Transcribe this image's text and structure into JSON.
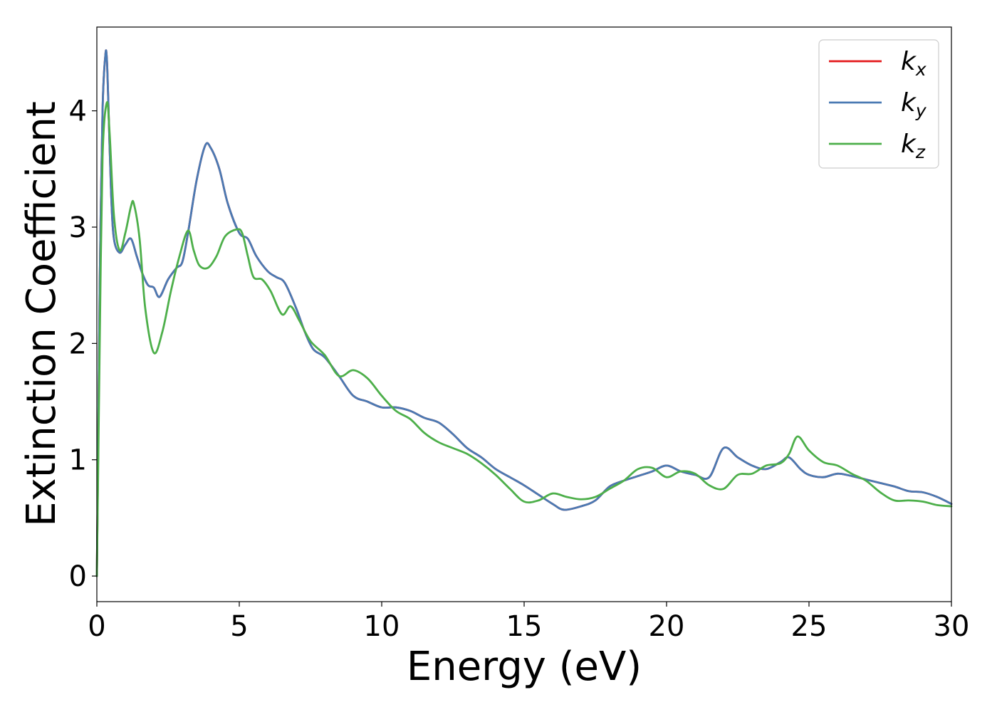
{
  "chart_data": {
    "type": "line",
    "title": "",
    "xlabel": "Energy (eV)",
    "ylabel": "Extinction Coefficient",
    "xlim": [
      0,
      30
    ],
    "ylim": [
      -0.22,
      4.72
    ],
    "xticks": [
      0,
      5,
      10,
      15,
      20,
      25,
      30
    ],
    "yticks": [
      0,
      1,
      2,
      3,
      4
    ],
    "grid": false,
    "legend_position": "top-right",
    "series": [
      {
        "name": "k_x",
        "label_base": "k",
        "label_sub": "x",
        "color": "#e41a1c",
        "x": [
          0,
          0.05,
          0.1,
          0.2,
          0.3,
          0.35,
          0.4,
          0.5,
          0.6,
          0.8,
          1.0,
          1.2,
          1.4,
          1.6,
          1.8,
          2.0,
          2.2,
          2.5,
          2.8,
          3.0,
          3.2,
          3.5,
          3.8,
          4.0,
          4.3,
          4.6,
          5.0,
          5.3,
          5.6,
          6.0,
          6.3,
          6.6,
          7.0,
          7.3,
          7.6,
          8.0,
          8.5,
          9.0,
          9.5,
          10.0,
          10.5,
          11.0,
          11.5,
          12.0,
          12.5,
          13.0,
          13.5,
          14.0,
          14.5,
          15.0,
          15.5,
          16.0,
          16.4,
          17.0,
          17.5,
          18.0,
          18.5,
          19.0,
          19.5,
          20.0,
          20.5,
          21.0,
          21.5,
          22.0,
          22.5,
          23.0,
          23.5,
          24.0,
          24.3,
          24.7,
          25.0,
          25.5,
          26.0,
          26.5,
          27.0,
          27.5,
          28.0,
          28.5,
          29.0,
          29.5,
          30.0
        ],
        "y": [
          0.0,
          1.2,
          2.5,
          4.0,
          4.48,
          4.45,
          4.1,
          3.3,
          2.9,
          2.78,
          2.85,
          2.9,
          2.75,
          2.6,
          2.5,
          2.48,
          2.4,
          2.55,
          2.65,
          2.7,
          2.95,
          3.4,
          3.7,
          3.68,
          3.5,
          3.2,
          2.95,
          2.9,
          2.75,
          2.62,
          2.57,
          2.52,
          2.3,
          2.1,
          1.95,
          1.88,
          1.72,
          1.55,
          1.5,
          1.45,
          1.45,
          1.42,
          1.36,
          1.32,
          1.22,
          1.1,
          1.02,
          0.92,
          0.85,
          0.78,
          0.7,
          0.62,
          0.57,
          0.6,
          0.65,
          0.77,
          0.82,
          0.86,
          0.9,
          0.95,
          0.9,
          0.87,
          0.85,
          1.1,
          1.02,
          0.95,
          0.92,
          0.98,
          1.02,
          0.92,
          0.87,
          0.85,
          0.88,
          0.86,
          0.83,
          0.8,
          0.77,
          0.73,
          0.72,
          0.68,
          0.62
        ]
      },
      {
        "name": "k_y",
        "label_base": "k",
        "label_sub": "y",
        "color": "#4a7ab3",
        "x": [
          0,
          0.05,
          0.1,
          0.2,
          0.3,
          0.35,
          0.4,
          0.5,
          0.6,
          0.8,
          1.0,
          1.2,
          1.4,
          1.6,
          1.8,
          2.0,
          2.2,
          2.5,
          2.8,
          3.0,
          3.2,
          3.5,
          3.8,
          4.0,
          4.3,
          4.6,
          5.0,
          5.3,
          5.6,
          6.0,
          6.3,
          6.6,
          7.0,
          7.3,
          7.6,
          8.0,
          8.5,
          9.0,
          9.5,
          10.0,
          10.5,
          11.0,
          11.5,
          12.0,
          12.5,
          13.0,
          13.5,
          14.0,
          14.5,
          15.0,
          15.5,
          16.0,
          16.4,
          17.0,
          17.5,
          18.0,
          18.5,
          19.0,
          19.5,
          20.0,
          20.5,
          21.0,
          21.5,
          22.0,
          22.5,
          23.0,
          23.5,
          24.0,
          24.3,
          24.7,
          25.0,
          25.5,
          26.0,
          26.5,
          27.0,
          27.5,
          28.0,
          28.5,
          29.0,
          29.5,
          30.0
        ],
        "y": [
          0.0,
          1.2,
          2.5,
          4.0,
          4.48,
          4.45,
          4.1,
          3.3,
          2.9,
          2.78,
          2.85,
          2.9,
          2.75,
          2.6,
          2.5,
          2.48,
          2.4,
          2.55,
          2.65,
          2.7,
          2.95,
          3.4,
          3.7,
          3.68,
          3.5,
          3.2,
          2.95,
          2.9,
          2.75,
          2.62,
          2.57,
          2.52,
          2.3,
          2.1,
          1.95,
          1.88,
          1.72,
          1.55,
          1.5,
          1.45,
          1.45,
          1.42,
          1.36,
          1.32,
          1.22,
          1.1,
          1.02,
          0.92,
          0.85,
          0.78,
          0.7,
          0.62,
          0.57,
          0.6,
          0.65,
          0.77,
          0.82,
          0.86,
          0.9,
          0.95,
          0.9,
          0.87,
          0.85,
          1.1,
          1.02,
          0.95,
          0.92,
          0.98,
          1.02,
          0.92,
          0.87,
          0.85,
          0.88,
          0.86,
          0.83,
          0.8,
          0.77,
          0.73,
          0.72,
          0.68,
          0.62
        ]
      },
      {
        "name": "k_z",
        "label_base": "k",
        "label_sub": "z",
        "color": "#4daf4a",
        "x": [
          0,
          0.05,
          0.1,
          0.2,
          0.35,
          0.45,
          0.6,
          0.8,
          1.0,
          1.2,
          1.3,
          1.5,
          1.7,
          2.0,
          2.3,
          2.6,
          2.9,
          3.2,
          3.4,
          3.6,
          3.9,
          4.2,
          4.5,
          4.9,
          5.1,
          5.3,
          5.5,
          5.8,
          6.1,
          6.5,
          6.8,
          7.1,
          7.5,
          8.0,
          8.5,
          9.0,
          9.5,
          10.0,
          10.5,
          11.0,
          11.5,
          12.0,
          12.5,
          13.0,
          13.5,
          14.0,
          14.5,
          15.0,
          15.5,
          16.0,
          16.5,
          17.0,
          17.5,
          18.0,
          18.5,
          19.0,
          19.5,
          20.0,
          20.5,
          21.0,
          21.5,
          22.0,
          22.5,
          23.0,
          23.5,
          24.0,
          24.3,
          24.6,
          25.0,
          25.5,
          26.0,
          26.5,
          27.0,
          27.5,
          28.0,
          28.5,
          29.0,
          29.5,
          30.0
        ],
        "y": [
          0.0,
          1.0,
          2.0,
          3.6,
          4.07,
          3.8,
          3.1,
          2.8,
          2.95,
          3.18,
          3.2,
          2.9,
          2.3,
          1.92,
          2.1,
          2.45,
          2.75,
          2.97,
          2.8,
          2.67,
          2.65,
          2.75,
          2.92,
          2.98,
          2.95,
          2.75,
          2.57,
          2.55,
          2.45,
          2.25,
          2.32,
          2.2,
          2.02,
          1.9,
          1.72,
          1.77,
          1.7,
          1.55,
          1.42,
          1.35,
          1.23,
          1.15,
          1.1,
          1.05,
          0.97,
          0.87,
          0.75,
          0.64,
          0.65,
          0.71,
          0.68,
          0.66,
          0.68,
          0.75,
          0.82,
          0.92,
          0.93,
          0.85,
          0.9,
          0.88,
          0.78,
          0.75,
          0.87,
          0.88,
          0.95,
          0.97,
          1.05,
          1.2,
          1.08,
          0.98,
          0.95,
          0.88,
          0.82,
          0.72,
          0.65,
          0.65,
          0.64,
          0.61,
          0.6
        ]
      }
    ]
  }
}
